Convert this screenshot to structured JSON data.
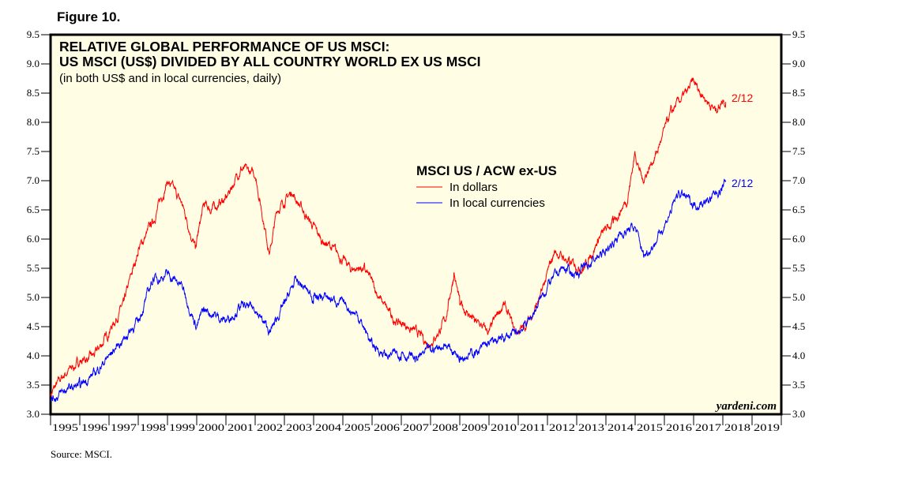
{
  "figure_label": "Figure 10.",
  "source": "Source: MSCI.",
  "chart_data": {
    "type": "line",
    "title": "RELATIVE GLOBAL PERFORMANCE OF US MSCI:",
    "title_line2": "US MSCI (US$) DIVIDED BY ALL COUNTRY WORLD EX US MSCI",
    "subtitle": "(in both US$ and in local currencies, daily)",
    "legend_title": "MSCI US / ACW ex-US",
    "legend_placement": "center",
    "watermark": "yardeni.com",
    "ylim": [
      3.0,
      9.5
    ],
    "xlim": [
      1995,
      2020
    ],
    "yticks": [
      "3.0",
      "3.5",
      "4.0",
      "4.5",
      "5.0",
      "5.5",
      "6.0",
      "6.5",
      "7.0",
      "7.5",
      "8.0",
      "8.5",
      "9.0",
      "9.5"
    ],
    "xticks": [
      "1995",
      "1996",
      "1997",
      "1998",
      "1999",
      "2000",
      "2001",
      "2002",
      "2003",
      "2004",
      "2005",
      "2006",
      "2007",
      "2008",
      "2009",
      "2010",
      "2011",
      "2012",
      "2013",
      "2014",
      "2015",
      "2016",
      "2017",
      "2018",
      "2019"
    ],
    "series": [
      {
        "name": "In dollars",
        "color": "#ff0000",
        "end_label": "2/12",
        "x": [
          1995.0,
          1995.5,
          1996.0,
          1996.5,
          1997.0,
          1997.5,
          1998.0,
          1998.5,
          1999.0,
          1999.5,
          1999.95,
          2000.25,
          2000.5,
          2001.0,
          2001.5,
          2002.0,
          2002.5,
          2002.75,
          2003.25,
          2003.75,
          2004.25,
          2004.75,
          2005.25,
          2005.75,
          2006.25,
          2006.75,
          2007.25,
          2007.75,
          2008.0,
          2008.5,
          2008.8,
          2009.0,
          2009.5,
          2010.0,
          2010.5,
          2010.9,
          2011.25,
          2011.75,
          2012.25,
          2012.75,
          2013.25,
          2013.75,
          2014.25,
          2014.75,
          2015.0,
          2015.25,
          2015.75,
          2016.25,
          2016.75,
          2017.0,
          2017.25,
          2017.75,
          2018.0,
          2018.1
        ],
        "values": [
          3.35,
          3.7,
          3.9,
          4.0,
          4.4,
          4.9,
          5.8,
          6.3,
          7.0,
          6.6,
          5.85,
          6.6,
          6.5,
          6.7,
          7.2,
          7.1,
          5.75,
          6.5,
          6.8,
          6.4,
          6.0,
          5.8,
          5.5,
          5.5,
          5.0,
          4.6,
          4.5,
          4.3,
          4.2,
          4.6,
          5.4,
          4.9,
          4.6,
          4.4,
          4.9,
          4.4,
          4.5,
          5.0,
          5.8,
          5.6,
          5.5,
          6.0,
          6.3,
          6.7,
          7.5,
          7.0,
          7.5,
          8.2,
          8.5,
          8.7,
          8.5,
          8.2,
          8.4,
          8.35
        ]
      },
      {
        "name": "In local currencies",
        "color": "#0000ff",
        "end_label": "2/12",
        "x": [
          1995.0,
          1995.5,
          1996.0,
          1996.5,
          1997.0,
          1997.5,
          1998.0,
          1998.5,
          1999.0,
          1999.5,
          2000.0,
          2000.25,
          2001.0,
          2001.5,
          2002.0,
          2002.5,
          2003.0,
          2003.4,
          2004.0,
          2004.5,
          2005.0,
          2005.5,
          2006.0,
          2006.5,
          2007.0,
          2007.5,
          2008.0,
          2008.5,
          2009.0,
          2009.5,
          2010.0,
          2010.5,
          2011.0,
          2011.5,
          2012.0,
          2012.5,
          2013.0,
          2013.5,
          2014.0,
          2014.5,
          2015.0,
          2015.3,
          2015.75,
          2016.25,
          2016.5,
          2017.0,
          2017.5,
          2018.0,
          2018.1
        ],
        "values": [
          3.25,
          3.4,
          3.5,
          3.7,
          4.0,
          4.3,
          4.6,
          5.3,
          5.4,
          5.2,
          4.5,
          4.8,
          4.6,
          4.85,
          4.8,
          4.4,
          4.9,
          5.3,
          5.0,
          5.0,
          4.9,
          4.7,
          4.2,
          4.0,
          4.05,
          3.95,
          4.1,
          4.2,
          4.0,
          4.05,
          4.2,
          4.3,
          4.4,
          4.7,
          5.2,
          5.5,
          5.4,
          5.6,
          5.8,
          6.1,
          6.2,
          5.7,
          6.0,
          6.5,
          6.8,
          6.6,
          6.65,
          6.9,
          7.0
        ]
      }
    ]
  }
}
